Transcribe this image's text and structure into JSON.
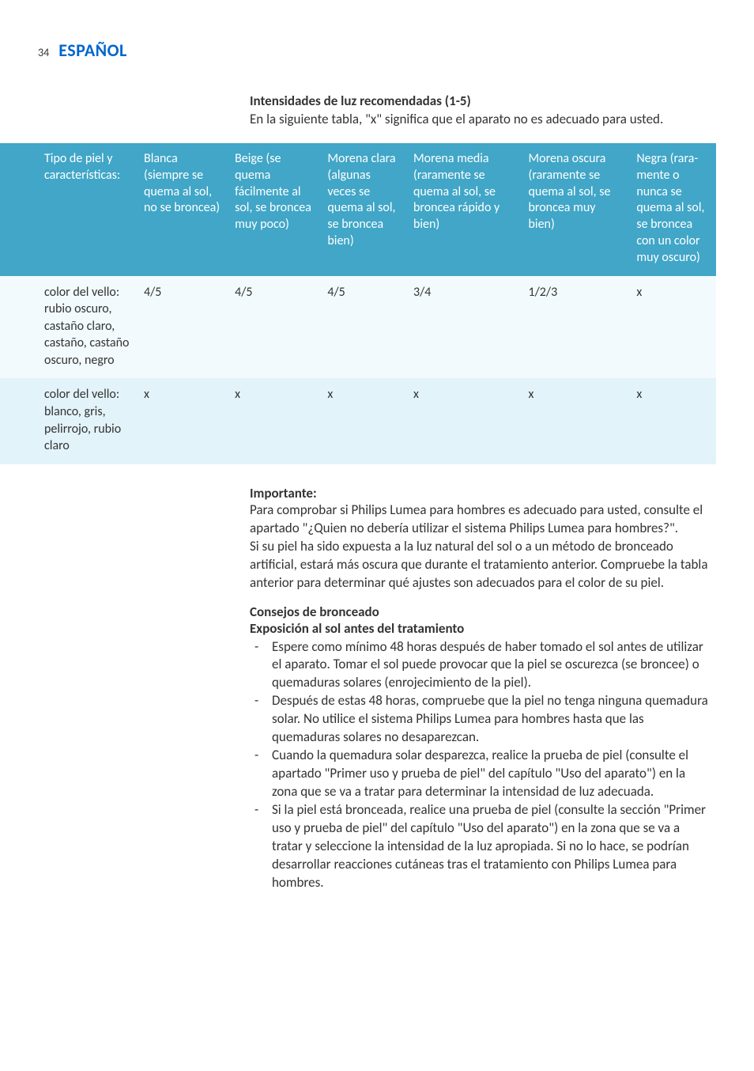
{
  "header": {
    "page_number": "34",
    "language_title": "ESPAÑOL"
  },
  "intro": {
    "title": "Intensidades de luz recomendadas (1-5)",
    "text": "En la siguiente tabla, \"x\" significa que el aparato no es adecuado para usted."
  },
  "table": {
    "header_bg": "#41a6c7",
    "header_fg": "#ffffff",
    "row_odd_bg": "#f2fafd",
    "row_even_bg": "#e2f3f9",
    "columns": [
      "Tipo de piel y características:",
      "Blanca (siempre se quema al sol, no se broncea)",
      "Beige (se quema fácilmente al sol, se broncea muy poco)",
      "Morena clara (algunas veces se quema al sol, se broncea bien)",
      "Morena media (raramente se quema al sol, se broncea rápido y bien)",
      "Morena oscura (raramente se quema al sol, se broncea muy bien)",
      "Negra (rara-mente o nunca se quema al sol, se broncea con un color muy oscuro)"
    ],
    "rows": [
      {
        "label": "color del vello: rubio oscuro, castaño claro, castaño, castaño oscuro, negro",
        "values": [
          "4/5",
          "4/5",
          "4/5",
          "3/4",
          "1/2/3",
          "x"
        ]
      },
      {
        "label": "color del vello: blanco, gris, pelirrojo, rubio claro",
        "values": [
          "x",
          "x",
          "x",
          "x",
          "x",
          "x"
        ]
      }
    ]
  },
  "important": {
    "title": "Importante:",
    "p1": "Para comprobar si Philips Lumea para hombres es adecuado para usted, consulte el apartado \"¿Quien no debería utilizar el sistema Philips Lumea para hombres?\".",
    "p2": "Si su piel ha sido expuesta a la luz natural del sol o a un método de bronceado artificial, estará más oscura que durante el tratamiento anterior. Compruebe la tabla anterior para determinar qué ajustes son adecuados para el color de su piel."
  },
  "tips_section": {
    "title1": "Consejos de bronceado",
    "title2": "Exposición al sol antes del tratamiento",
    "items": [
      "Espere como mínimo 48 horas después de haber tomado el sol antes de utilizar el aparato. Tomar el sol puede provocar que la piel se oscurezca (se broncee) o quemaduras solares (enrojecimiento de la piel).",
      "Después de estas 48 horas, compruebe que la piel no tenga ninguna quemadura solar. No utilice el sistema Philips Lumea para hombres hasta que las quemaduras solares no desaparezcan.",
      "Cuando la quemadura solar desparezca, realice la prueba de piel (consulte el apartado \"Primer uso y prueba de piel\" del capítulo \"Uso del aparato\") en la zona que se va a tratar para determinar la intensidad de luz adecuada.",
      "Si la piel está bronceada, realice una prueba de piel (consulte la sección \"Primer uso y prueba de piel\" del capítulo \"Uso del aparato\") en la zona que se va a tratar y seleccione la intensidad de la luz apropiada. Si no lo hace, se podrían desarrollar reacciones cutáneas tras el tratamiento con Philips Lumea para hombres."
    ]
  },
  "colors": {
    "brand_blue": "#0066cc",
    "text": "#333333",
    "background": "#ffffff"
  },
  "fonts": {
    "body_size_pt": 13,
    "title_size_pt": 17,
    "family": "Gill Sans"
  }
}
